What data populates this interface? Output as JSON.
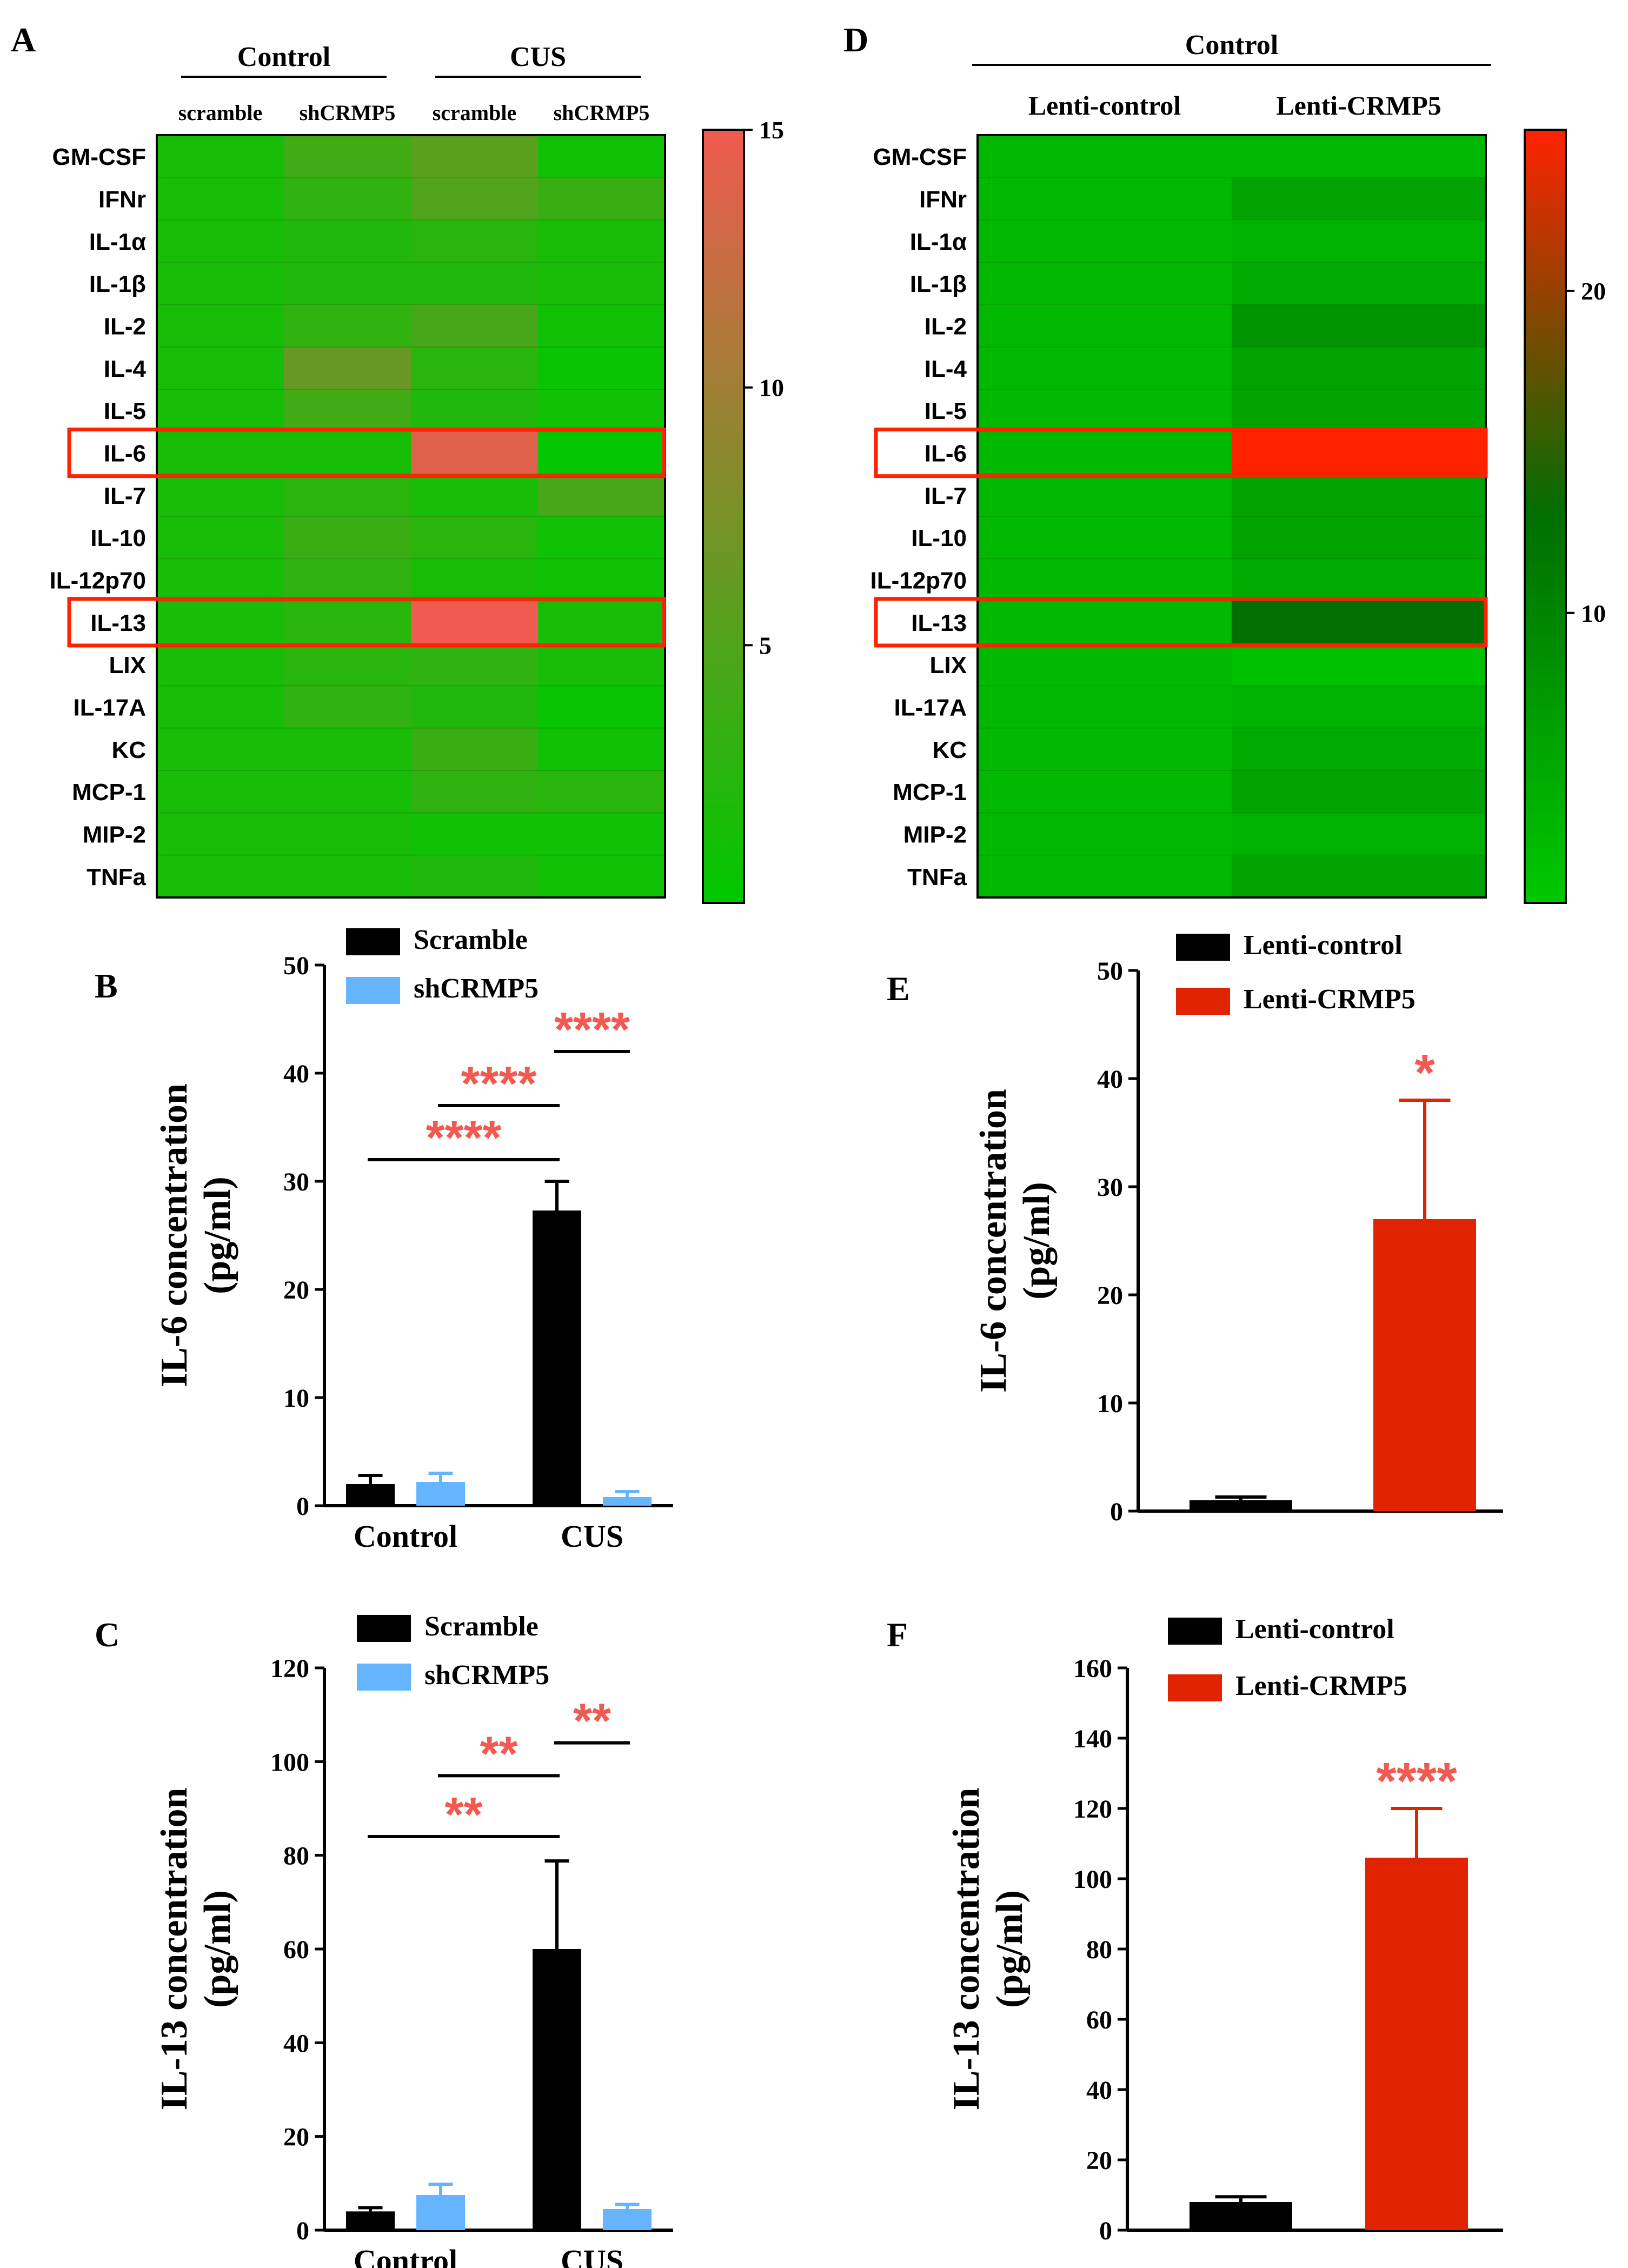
{
  "chart_data": [
    {
      "panel": "A",
      "type": "heatmap",
      "group_headers": [
        "Control",
        "CUS"
      ],
      "columns": [
        "scramble",
        "shCRMP5",
        "scramble",
        "shCRMP5"
      ],
      "rows": [
        "GM-CSF",
        "IFNr",
        "IL-1α",
        "IL-1β",
        "IL-2",
        "IL-4",
        "IL-5",
        "IL-6",
        "IL-7",
        "IL-10",
        "IL-12p70",
        "IL-13",
        "LIX",
        "IL-17A",
        "KC",
        "MCP-1",
        "MIP-2",
        "TNFa"
      ],
      "values": [
        [
          1.5,
          4.0,
          5.5,
          1.0
        ],
        [
          1.5,
          3.0,
          5.0,
          3.5
        ],
        [
          1.5,
          2.0,
          2.5,
          1.5
        ],
        [
          1.5,
          2.0,
          2.0,
          1.5
        ],
        [
          1.5,
          3.0,
          4.5,
          1.0
        ],
        [
          1.5,
          6.5,
          2.5,
          0.5
        ],
        [
          1.5,
          4.0,
          2.0,
          1.0
        ],
        [
          1.5,
          1.5,
          14.0,
          0.3
        ],
        [
          1.5,
          2.5,
          1.5,
          4.5
        ],
        [
          1.5,
          3.5,
          2.5,
          1.0
        ],
        [
          1.5,
          3.0,
          1.5,
          1.0
        ],
        [
          1.5,
          2.5,
          15.0,
          1.5
        ],
        [
          1.5,
          2.5,
          3.0,
          1.5
        ],
        [
          1.5,
          3.0,
          2.0,
          0.5
        ],
        [
          1.5,
          1.5,
          3.5,
          1.0
        ],
        [
          1.5,
          1.5,
          3.0,
          2.5
        ],
        [
          1.5,
          1.5,
          1.0,
          1.0
        ],
        [
          1.5,
          1.5,
          2.0,
          1.0
        ]
      ],
      "highlighted_rows": [
        "IL-6",
        "IL-13"
      ],
      "colorbar_ticks": [
        5,
        10,
        15
      ],
      "color_range": [
        0,
        15
      ],
      "colors": {
        "low": "#00c800",
        "high": "#f05a50"
      }
    },
    {
      "panel": "D",
      "type": "heatmap",
      "group_headers": [
        "Control"
      ],
      "columns": [
        "Lenti-control",
        "Lenti-CRMP5"
      ],
      "rows": [
        "GM-CSF",
        "IFNr",
        "IL-1α",
        "IL-1β",
        "IL-2",
        "IL-4",
        "IL-5",
        "IL-6",
        "IL-7",
        "IL-10",
        "IL-12p70",
        "IL-13",
        "LIX",
        "IL-17A",
        "KC",
        "MCP-1",
        "MIP-2",
        "TNFa"
      ],
      "values": [
        [
          3,
          3
        ],
        [
          3,
          6
        ],
        [
          3,
          4
        ],
        [
          3,
          5
        ],
        [
          3,
          8
        ],
        [
          3,
          6
        ],
        [
          3,
          6
        ],
        [
          3,
          25
        ],
        [
          3,
          6
        ],
        [
          3,
          6
        ],
        [
          3,
          5
        ],
        [
          3,
          13
        ],
        [
          3,
          2
        ],
        [
          3,
          4
        ],
        [
          3,
          5
        ],
        [
          3,
          6
        ],
        [
          3,
          4
        ],
        [
          3,
          6
        ]
      ],
      "highlighted_rows": [
        "IL-6",
        "IL-13"
      ],
      "colorbar_ticks": [
        10,
        20
      ],
      "color_range": [
        1,
        25
      ],
      "colors": {
        "low": "#00c800",
        "mid": "#006e00",
        "high": "#ff2200"
      }
    },
    {
      "panel": "B",
      "type": "bar",
      "categories": [
        "Control",
        "CUS"
      ],
      "series": [
        {
          "name": "Scramble",
          "values": [
            2.0,
            27.3
          ],
          "errors": [
            0.8,
            2.7
          ],
          "color": "#000000"
        },
        {
          "name": "shCRMP5",
          "values": [
            2.2,
            0.8
          ],
          "errors": [
            0.8,
            0.5
          ],
          "color": "#64b4ff"
        }
      ],
      "ylabel": [
        "IL-6 concentration",
        "(pg/ml)"
      ],
      "ylim": [
        0,
        50
      ],
      "yticks": [
        0,
        10,
        20,
        30,
        40,
        50
      ],
      "significance": [
        {
          "from": [
            0,
            0
          ],
          "to": [
            1,
            0
          ],
          "label": "****",
          "y": 32
        },
        {
          "from": [
            0,
            1
          ],
          "to": [
            1,
            0
          ],
          "label": "****",
          "y": 37
        },
        {
          "from": [
            1,
            0
          ],
          "to": [
            1,
            1
          ],
          "label": "****",
          "y": 42
        }
      ],
      "legend_position": "top"
    },
    {
      "panel": "C",
      "type": "bar",
      "categories": [
        "Control",
        "CUS"
      ],
      "series": [
        {
          "name": "Scramble",
          "values": [
            4.0,
            60.0
          ],
          "errors": [
            0.8,
            18.8
          ],
          "color": "#000000"
        },
        {
          "name": "shCRMP5",
          "values": [
            7.5,
            4.5
          ],
          "errors": [
            2.3,
            1.0
          ],
          "color": "#64b4ff"
        }
      ],
      "ylabel": [
        "IL-13 concentration",
        "(pg/ml)"
      ],
      "ylim": [
        0,
        120
      ],
      "yticks": [
        0,
        20,
        40,
        60,
        80,
        100,
        120
      ],
      "significance": [
        {
          "from": [
            0,
            0
          ],
          "to": [
            1,
            0
          ],
          "label": "**",
          "y": 84
        },
        {
          "from": [
            0,
            1
          ],
          "to": [
            1,
            0
          ],
          "label": "**",
          "y": 97
        },
        {
          "from": [
            1,
            0
          ],
          "to": [
            1,
            1
          ],
          "label": "**",
          "y": 104
        }
      ],
      "legend_position": "top"
    },
    {
      "panel": "E",
      "type": "bar",
      "categories": [
        "Lenti-control",
        "Lenti-CRMP5"
      ],
      "series": [
        {
          "name": "Lenti-control",
          "value": 1.0,
          "error": 0.3,
          "color": "#000000"
        },
        {
          "name": "Lenti-CRMP5",
          "value": 27.0,
          "error": 11.0,
          "color": "#e12300"
        }
      ],
      "ylabel": [
        "IL-6 concentration",
        "(pg/ml)"
      ],
      "ylim": [
        0,
        50
      ],
      "yticks": [
        0,
        10,
        20,
        30,
        40,
        50
      ],
      "significance_label": "*",
      "legend_position": "top"
    },
    {
      "panel": "F",
      "type": "bar",
      "categories": [
        "Lenti-control",
        "Lenti-CRMP5"
      ],
      "series": [
        {
          "name": "Lenti-control",
          "value": 8.0,
          "error": 1.5,
          "color": "#000000"
        },
        {
          "name": "Lenti-CRMP5",
          "value": 106.0,
          "error": 14.0,
          "color": "#e12300"
        }
      ],
      "ylabel": [
        "IL-13 concentration",
        "(pg/ml)"
      ],
      "ylim": [
        0,
        160
      ],
      "yticks": [
        0,
        20,
        40,
        60,
        80,
        100,
        120,
        140,
        160
      ],
      "significance_label": "****",
      "legend_position": "top"
    }
  ]
}
